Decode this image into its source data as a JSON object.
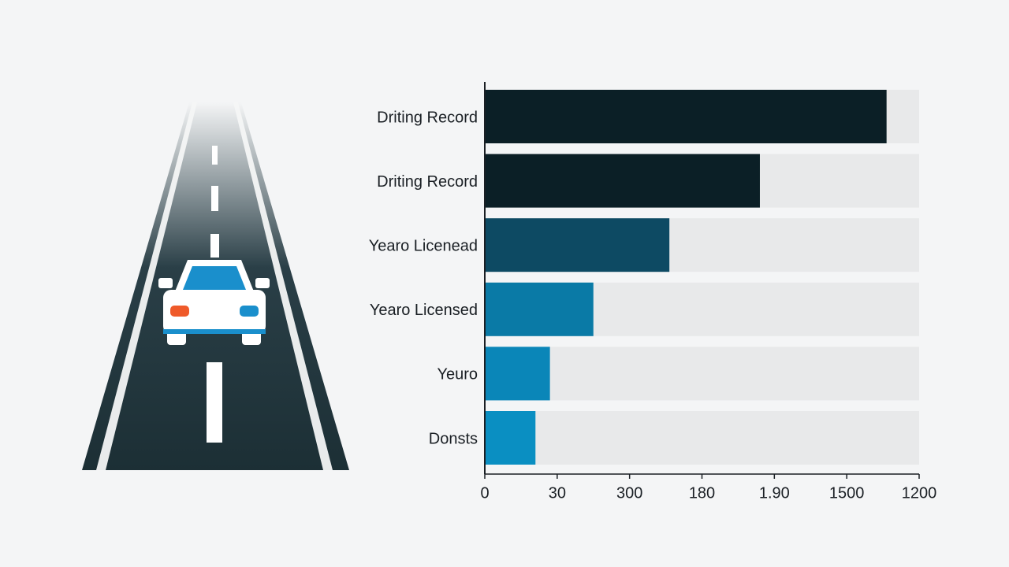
{
  "chart_data": {
    "type": "bar",
    "orientation": "horizontal",
    "categories": [
      "Driting Record",
      "Driting Record",
      "Yearo Licenead",
      "Yearo Licensed",
      "Yeuro",
      "Donsts"
    ],
    "values": [
      1110,
      760,
      510,
      300,
      180,
      140
    ],
    "colors": [
      "#0b1f26",
      "#0b1f26",
      "#0d4a63",
      "#0a7aa6",
      "#0a86b8",
      "#0a8fc2"
    ],
    "xlim": [
      0,
      1200
    ],
    "xticks": [
      0,
      {
        "value": 200,
        "label": "30"
      },
      {
        "value": 400,
        "label": "300"
      },
      {
        "value": 600,
        "label": "180"
      },
      {
        "value": 800,
        "label": "1.90"
      },
      {
        "value": 1000,
        "label": "1500"
      },
      1200
    ]
  }
}
